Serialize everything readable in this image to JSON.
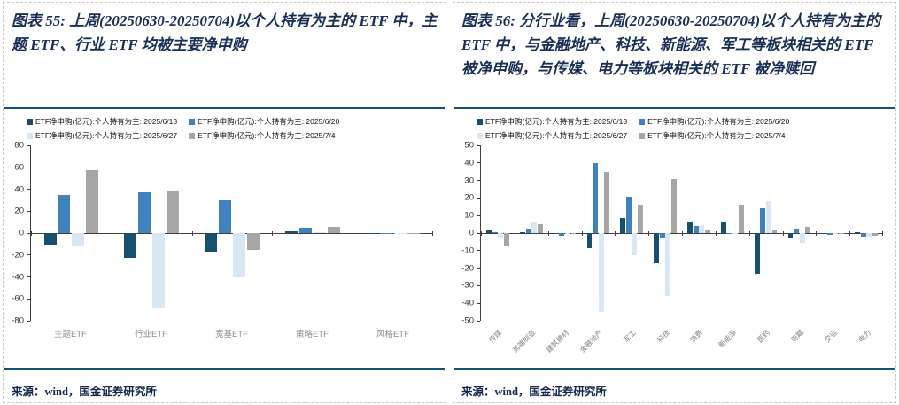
{
  "panels": [
    {
      "title": "图表 55: 上周(20250630-20250704)以个人持有为主的 ETF 中，主题 ETF、行业 ETF 均被主要净申购",
      "source": "来源：wind，国金证券研究所"
    },
    {
      "title": "图表 56: 分行业看，上周(20250630-20250704)以个人持有为主的 ETF 中，与金融地产、科技、新能源、军工等板块相关的 ETF 被净申购，与传媒、电力等板块相关的 ETF 被净赎回",
      "source": "来源：wind，国金证券研究所"
    }
  ],
  "colors": {
    "series_dark_teal": "#17506f",
    "series_blue": "#4181bd",
    "series_light_blue": "#d9e6f4",
    "series_gray": "#a6a6a6",
    "rule_navy": "#134f7c",
    "title_navy": "#1a2f55"
  },
  "chart_data": [
    {
      "type": "bar",
      "title": "",
      "xlabel": "",
      "ylabel": "",
      "grid": false,
      "legend_position": "top",
      "rotate_xlabels": false,
      "ylim": [
        -80,
        80
      ],
      "ytick_step": 20,
      "categories": [
        "主题ETF",
        "行业ETF",
        "宽基ETF",
        "策略ETF",
        "风格ETF"
      ],
      "series": [
        {
          "name": "ETF净申购(亿元):个人持有为主: 2025/6/13",
          "color": "#17506f",
          "values": [
            -11,
            -23,
            -17,
            2,
            -1
          ]
        },
        {
          "name": "ETF净申购(亿元):个人持有为主: 2025/6/20",
          "color": "#4181bd",
          "values": [
            35,
            37,
            30,
            4.5,
            -1
          ]
        },
        {
          "name": "ETF净申购(亿元):个人持有为主: 2025/6/27",
          "color": "#d9e6f4",
          "values": [
            -12,
            -69,
            -40,
            0.5,
            -0.5
          ]
        },
        {
          "name": "ETF净申购(亿元):个人持有为主: 2025/7/4",
          "color": "#a6a6a6",
          "values": [
            57,
            39,
            -15,
            6,
            -0.5
          ]
        }
      ]
    },
    {
      "type": "bar",
      "title": "",
      "xlabel": "",
      "ylabel": "",
      "grid": false,
      "legend_position": "top",
      "rotate_xlabels": true,
      "ylim": [
        -50,
        50
      ],
      "ytick_step": 10,
      "categories": [
        "传媒",
        "高端制造",
        "建筑建材",
        "金融地产",
        "军工",
        "科技",
        "消费",
        "新能源",
        "医药",
        "周期",
        "交运",
        "电力"
      ],
      "series": [
        {
          "name": "ETF净申购(亿元):个人持有为主: 2025/6/13",
          "color": "#17506f",
          "values": [
            1.5,
            0.7,
            -0.5,
            -8.5,
            8.5,
            -17,
            6.5,
            6,
            -23,
            -2.5,
            -0.5,
            0.5
          ]
        },
        {
          "name": "ETF净申购(亿元):个人持有为主: 2025/6/20",
          "color": "#4181bd",
          "values": [
            0.3,
            2.5,
            -1.5,
            40,
            20.5,
            -3,
            4,
            -0.5,
            14,
            2.5,
            -1,
            -2
          ]
        },
        {
          "name": "ETF净申购(亿元):个人持有为主: 2025/6/27",
          "color": "#d9e6f4",
          "values": [
            -2.5,
            6.5,
            -0.3,
            -45,
            -12.5,
            -36,
            4.5,
            -0.3,
            18,
            -5.5,
            -0.3,
            -2
          ]
        },
        {
          "name": "ETF净申购(亿元):个人持有为主: 2025/7/4",
          "color": "#a6a6a6",
          "values": [
            -7.5,
            5,
            -0.5,
            35,
            16,
            31,
            2,
            16,
            1.5,
            3.5,
            -0.3,
            -1.5
          ]
        }
      ]
    }
  ]
}
